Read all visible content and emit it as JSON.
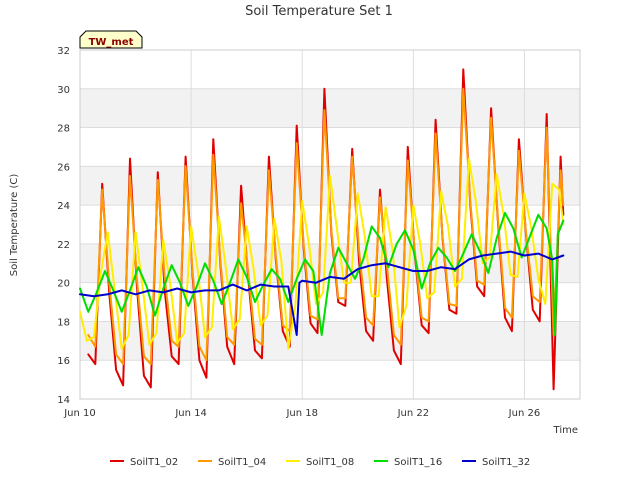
{
  "chart_data": {
    "type": "line",
    "title": "Soil Temperature Set 1",
    "xlabel": "Time",
    "ylabel": "Soil Temperature (C)",
    "station_label": "TW_met",
    "x_unit": "day of June (Jun 10 – Jun 27)",
    "xlim": [
      10,
      28
    ],
    "ylim": [
      14,
      32
    ],
    "x_ticks": [
      {
        "x": 10,
        "label": "Jun 10"
      },
      {
        "x": 14,
        "label": "Jun 14"
      },
      {
        "x": 18,
        "label": "Jun 18"
      },
      {
        "x": 22,
        "label": "Jun 22"
      },
      {
        "x": 26,
        "label": "Jun 26"
      }
    ],
    "y_ticks": [
      14,
      16,
      18,
      20,
      22,
      24,
      26,
      28,
      30,
      32
    ],
    "grid": true,
    "legend_position": "bottom",
    "series": [
      {
        "name": "SoilT1_02",
        "color": "#e00000",
        "x": [
          10.3,
          10.55,
          10.8,
          11.05,
          11.3,
          11.55,
          11.8,
          12.05,
          12.3,
          12.55,
          12.8,
          13.05,
          13.3,
          13.55,
          13.8,
          14.05,
          14.3,
          14.55,
          14.8,
          15.05,
          15.3,
          15.55,
          15.8,
          16.05,
          16.3,
          16.55,
          16.8,
          17.05,
          17.3,
          17.55,
          17.8,
          18.05,
          18.3,
          18.55,
          18.8,
          19.05,
          19.3,
          19.55,
          19.8,
          20.05,
          20.3,
          20.55,
          20.8,
          21.05,
          21.3,
          21.55,
          21.8,
          22.05,
          22.3,
          22.55,
          22.8,
          23.05,
          23.3,
          23.55,
          23.8,
          24.05,
          24.3,
          24.55,
          24.8,
          25.05,
          25.3,
          25.55,
          25.8,
          26.05,
          26.3,
          26.55,
          26.8,
          27.05,
          27.3,
          27.4
        ],
        "y": [
          16.3,
          15.8,
          25.1,
          19.5,
          15.5,
          14.7,
          26.4,
          19.8,
          15.2,
          14.6,
          25.7,
          19.6,
          16.2,
          15.8,
          26.5,
          20.4,
          16.0,
          15.1,
          27.4,
          21.0,
          16.7,
          15.8,
          25.0,
          20.3,
          16.5,
          16.1,
          26.5,
          21.2,
          17.5,
          16.7,
          28.1,
          21.8,
          17.9,
          17.4,
          30.0,
          22.5,
          19.0,
          18.8,
          26.9,
          21.0,
          17.5,
          17.0,
          24.8,
          20.2,
          16.5,
          15.8,
          27.0,
          21.5,
          17.8,
          17.4,
          28.4,
          22.3,
          18.6,
          18.4,
          31.0,
          24.0,
          19.8,
          19.3,
          29.0,
          23.0,
          18.2,
          17.5,
          27.4,
          22.6,
          18.6,
          18.0,
          28.7,
          14.5,
          26.5,
          23.5
        ]
      },
      {
        "name": "SoilT1_04",
        "color": "#ff9900",
        "x": [
          10.3,
          10.55,
          10.8,
          11.05,
          11.3,
          11.55,
          11.8,
          12.05,
          12.3,
          12.55,
          12.8,
          13.05,
          13.3,
          13.55,
          13.8,
          14.05,
          14.3,
          14.55,
          14.8,
          15.05,
          15.3,
          15.55,
          15.8,
          16.05,
          16.3,
          16.55,
          16.8,
          17.05,
          17.3,
          17.55,
          17.8,
          18.05,
          18.3,
          18.55,
          18.8,
          19.05,
          19.3,
          19.55,
          19.8,
          20.05,
          20.3,
          20.55,
          20.8,
          21.05,
          21.3,
          21.55,
          21.8,
          22.05,
          22.3,
          22.55,
          22.8,
          23.05,
          23.3,
          23.55,
          23.8,
          24.05,
          24.3,
          24.55,
          24.8,
          25.05,
          25.3,
          25.55,
          25.8,
          26.05,
          26.3,
          26.55,
          26.8,
          27.05,
          27.3,
          27.4
        ],
        "y": [
          17.3,
          16.7,
          24.8,
          20.0,
          16.3,
          15.8,
          25.5,
          20.2,
          16.2,
          15.8,
          25.3,
          20.3,
          17.0,
          16.7,
          26.0,
          20.6,
          16.7,
          16.0,
          26.6,
          21.2,
          17.2,
          16.8,
          24.1,
          20.6,
          17.1,
          16.8,
          25.8,
          21.4,
          17.8,
          17.5,
          27.2,
          22.0,
          18.3,
          18.1,
          28.9,
          22.7,
          19.2,
          19.2,
          26.5,
          21.6,
          18.2,
          17.8,
          24.4,
          20.9,
          17.3,
          16.8,
          26.3,
          21.7,
          18.2,
          18.0,
          27.7,
          22.4,
          18.9,
          18.8,
          30.0,
          24.2,
          20.1,
          19.9,
          28.5,
          23.2,
          18.7,
          18.2,
          26.8,
          22.7,
          19.3,
          19.0,
          28.0,
          17.3,
          25.8,
          24.0
        ]
      },
      {
        "name": "SoilT1_08",
        "color": "#ffee00",
        "x": [
          10.0,
          10.25,
          10.5,
          10.75,
          11.0,
          11.25,
          11.5,
          11.75,
          12.0,
          12.25,
          12.5,
          12.75,
          13.0,
          13.25,
          13.5,
          13.75,
          14.0,
          14.25,
          14.5,
          14.75,
          15.0,
          15.25,
          15.5,
          15.75,
          16.0,
          16.25,
          16.5,
          16.75,
          17.0,
          17.25,
          17.5,
          17.75,
          18.0,
          18.25,
          18.5,
          18.75,
          19.0,
          19.25,
          19.5,
          19.75,
          20.0,
          20.25,
          20.5,
          20.75,
          21.0,
          21.25,
          21.5,
          21.75,
          22.0,
          22.25,
          22.5,
          22.75,
          23.0,
          23.25,
          23.5,
          23.75,
          24.0,
          24.25,
          24.5,
          24.75,
          25.0,
          25.25,
          25.5,
          25.75,
          26.0,
          26.25,
          26.5,
          26.75,
          27.0,
          27.25,
          27.4
        ],
        "y": [
          18.5,
          17.0,
          17.2,
          20.5,
          22.6,
          19.6,
          16.6,
          17.3,
          22.6,
          19.8,
          16.8,
          17.4,
          22.2,
          19.9,
          16.9,
          17.4,
          22.9,
          20.5,
          17.2,
          17.7,
          23.4,
          20.8,
          17.6,
          18.1,
          22.9,
          20.7,
          17.8,
          18.3,
          23.3,
          21.1,
          16.6,
          18.8,
          24.2,
          21.9,
          18.9,
          19.5,
          25.5,
          22.8,
          20.0,
          20.0,
          24.6,
          22.4,
          19.3,
          19.3,
          23.9,
          21.7,
          17.7,
          18.8,
          24.0,
          22.0,
          19.2,
          19.5,
          24.7,
          22.9,
          19.8,
          20.2,
          26.4,
          24.2,
          21.0,
          21.3,
          25.6,
          23.5,
          20.4,
          20.3,
          24.6,
          22.8,
          20.2,
          18.9,
          25.1,
          24.8,
          23.0
        ]
      },
      {
        "name": "SoilT1_16",
        "color": "#00dd00",
        "x": [
          10.0,
          10.3,
          10.6,
          10.9,
          11.2,
          11.5,
          11.8,
          12.1,
          12.4,
          12.7,
          13.0,
          13.3,
          13.6,
          13.9,
          14.2,
          14.5,
          14.8,
          15.1,
          15.4,
          15.7,
          16.0,
          16.3,
          16.6,
          16.9,
          17.2,
          17.5,
          17.8,
          18.1,
          18.4,
          18.7,
          19.0,
          19.3,
          19.6,
          19.9,
          20.2,
          20.5,
          20.8,
          21.1,
          21.4,
          21.7,
          22.0,
          22.3,
          22.6,
          22.9,
          23.2,
          23.5,
          23.8,
          24.1,
          24.4,
          24.7,
          25.0,
          25.3,
          25.6,
          25.9,
          26.2,
          26.5,
          26.8,
          27.0,
          27.1,
          27.2,
          27.4
        ],
        "y": [
          19.7,
          18.5,
          19.5,
          20.6,
          19.6,
          18.5,
          19.6,
          20.8,
          19.8,
          18.3,
          19.7,
          20.9,
          20.0,
          18.8,
          19.8,
          21.0,
          20.1,
          18.9,
          20.0,
          21.2,
          20.3,
          19.0,
          19.9,
          20.7,
          20.2,
          19.0,
          20.2,
          21.2,
          20.6,
          17.3,
          20.5,
          21.8,
          21.0,
          20.2,
          21.2,
          22.9,
          22.3,
          20.8,
          22.0,
          22.7,
          21.7,
          19.7,
          21.0,
          21.8,
          21.3,
          20.6,
          21.5,
          22.5,
          21.6,
          20.5,
          22.3,
          23.6,
          22.8,
          21.3,
          22.4,
          23.5,
          22.8,
          21.2,
          17.3,
          22.5,
          23.2
        ]
      },
      {
        "name": "SoilT1_32",
        "color": "#0000cc",
        "x": [
          10.0,
          10.5,
          11.0,
          11.5,
          12.0,
          12.5,
          13.0,
          13.5,
          14.0,
          14.5,
          15.0,
          15.5,
          16.0,
          16.5,
          17.0,
          17.5,
          17.8,
          17.9,
          18.0,
          18.5,
          19.0,
          19.5,
          20.0,
          20.5,
          21.0,
          21.5,
          22.0,
          22.5,
          23.0,
          23.5,
          24.0,
          24.5,
          25.0,
          25.5,
          26.0,
          26.5,
          27.0,
          27.2,
          27.4
        ],
        "y": [
          19.4,
          19.3,
          19.4,
          19.6,
          19.4,
          19.6,
          19.5,
          19.7,
          19.5,
          19.6,
          19.6,
          19.9,
          19.6,
          19.9,
          19.8,
          19.8,
          17.3,
          20.0,
          20.1,
          20.0,
          20.3,
          20.2,
          20.7,
          20.9,
          21.0,
          20.8,
          20.6,
          20.6,
          20.8,
          20.7,
          21.2,
          21.4,
          21.5,
          21.6,
          21.4,
          21.5,
          21.2,
          21.3,
          21.4
        ]
      }
    ]
  }
}
